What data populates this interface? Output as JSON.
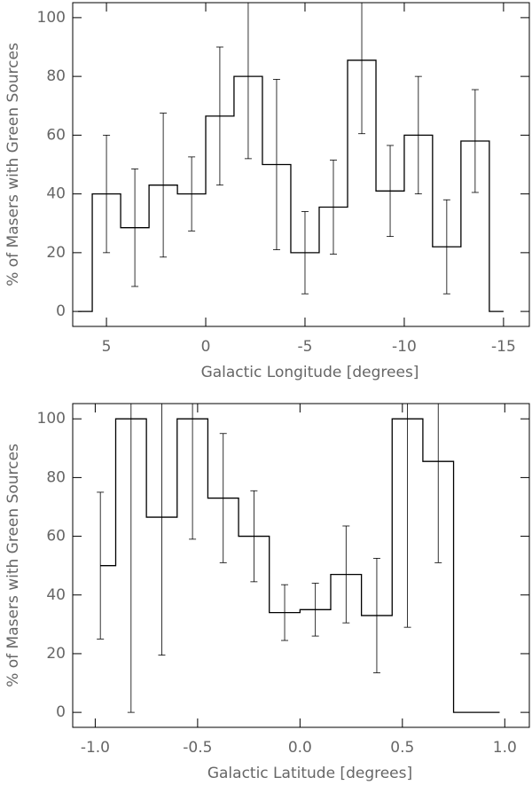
{
  "chart_data": [
    {
      "type": "step",
      "xlabel": "Galactic Longitude [degrees]",
      "ylabel": "% of Masers with Green Sources",
      "color": "#000000",
      "x": [
        6.43,
        5,
        3.57,
        2.14,
        0.71,
        -0.71,
        -2.14,
        -3.57,
        -5,
        -6.43,
        -7.86,
        -9.29,
        -10.71,
        -12.14,
        -13.57,
        -15
      ],
      "values": [
        0,
        40,
        28.5,
        43,
        40,
        66.5,
        80,
        50,
        20,
        35.5,
        85.5,
        41,
        60,
        22,
        58,
        0
      ],
      "errors": [
        null,
        20,
        20,
        24.5,
        12.6,
        23.5,
        28,
        29,
        14,
        16,
        25,
        15.5,
        20,
        16,
        17.5,
        null
      ],
      "xlim": [
        6.7,
        -16.3
      ],
      "ylim": [
        -5.1,
        105.1
      ],
      "xticks": [
        5,
        0,
        -5,
        -10,
        -15
      ],
      "yticks": [
        0,
        20,
        40,
        60,
        80,
        100
      ]
    },
    {
      "type": "step",
      "xlabel": "Galactic Latitude [degrees]",
      "ylabel": "% of Masers with Green Sources",
      "color": "#000000",
      "x": [
        -0.975,
        -0.825,
        -0.675,
        -0.525,
        -0.375,
        -0.225,
        -0.075,
        0.075,
        0.225,
        0.375,
        0.525,
        0.675,
        0.825,
        0.975
      ],
      "values": [
        50,
        100,
        66.5,
        100,
        73,
        60,
        34,
        35,
        47,
        33,
        100,
        85.5,
        0,
        0
      ],
      "errors": [
        25,
        100,
        47,
        41,
        22,
        15.5,
        9.5,
        9,
        16.5,
        19.5,
        71,
        34.5,
        null,
        null
      ],
      "xlim": [
        -1.11,
        1.12
      ],
      "ylim": [
        -5.1,
        105.2
      ],
      "xticks": [
        {
          "value": -1,
          "label": "-1.0"
        },
        {
          "value": -0.5,
          "label": "-0.5"
        },
        {
          "value": 0,
          "label": "0.0"
        },
        {
          "value": 0.5,
          "label": "0.5"
        },
        {
          "value": 1,
          "label": "1.0"
        }
      ],
      "yticks": [
        0,
        20,
        40,
        60,
        80,
        100
      ]
    }
  ]
}
